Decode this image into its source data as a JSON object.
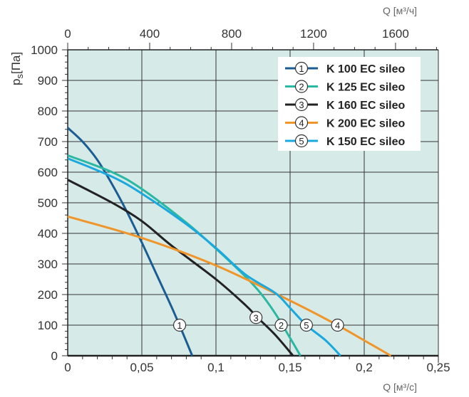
{
  "chart_data": {
    "type": "line",
    "xlabel": "Q [м³/с]",
    "x2label": "Q [м³/ч]",
    "ylabel_main": "p",
    "ylabel_sub": "s",
    "ylabel_unit": "[Па]",
    "xlim": [
      0,
      0.25
    ],
    "x2lim": [
      0,
      1809
    ],
    "ylim": [
      0,
      1000
    ],
    "grid": true,
    "legend_placement": "top-right",
    "xticks": [
      "0",
      "0,05",
      "0,1",
      "0,15",
      "0,2",
      "0,25"
    ],
    "xtick_values": [
      0,
      0.05,
      0.1,
      0.15,
      0.2,
      0.25
    ],
    "x2ticks": [
      "0",
      "400",
      "800",
      "1200",
      "1600"
    ],
    "x2tick_values": [
      0,
      400,
      800,
      1200,
      1600
    ],
    "yticks": [
      "0",
      "100",
      "200",
      "300",
      "400",
      "500",
      "600",
      "700",
      "800",
      "900",
      "1000"
    ],
    "ytick_values": [
      0,
      100,
      200,
      300,
      400,
      500,
      600,
      700,
      800,
      900,
      1000
    ],
    "series": [
      {
        "id": "1",
        "name": "K 100 EC sileo",
        "color": "#1b5d93",
        "label_at": [
          0.0755,
          100
        ],
        "points": [
          [
            0,
            745
          ],
          [
            0.01,
            700
          ],
          [
            0.02,
            640
          ],
          [
            0.03,
            560
          ],
          [
            0.04,
            470
          ],
          [
            0.05,
            370
          ],
          [
            0.06,
            265
          ],
          [
            0.07,
            160
          ],
          [
            0.078,
            70
          ],
          [
            0.084,
            0
          ]
        ]
      },
      {
        "id": "2",
        "name": "K 125 EC sileo",
        "color": "#2bb8a2",
        "label_at": [
          0.144,
          100
        ],
        "points": [
          [
            0,
            655
          ],
          [
            0.03,
            600
          ],
          [
            0.05,
            545
          ],
          [
            0.08,
            435
          ],
          [
            0.1,
            350
          ],
          [
            0.12,
            258
          ],
          [
            0.13,
            205
          ],
          [
            0.14,
            138
          ],
          [
            0.15,
            58
          ],
          [
            0.157,
            0
          ]
        ]
      },
      {
        "id": "3",
        "name": "K 160 EC sileo",
        "color": "#222222",
        "label_at": [
          0.127,
          125
        ],
        "points": [
          [
            0,
            575
          ],
          [
            0.03,
            500
          ],
          [
            0.05,
            440
          ],
          [
            0.07,
            360
          ],
          [
            0.1,
            250
          ],
          [
            0.12,
            165
          ],
          [
            0.128,
            125
          ],
          [
            0.14,
            68
          ],
          [
            0.152,
            0
          ]
        ]
      },
      {
        "id": "4",
        "name": "K 200 EC sileo",
        "color": "#f0952a",
        "label_at": [
          0.182,
          100
        ],
        "points": [
          [
            0,
            455
          ],
          [
            0.05,
            385
          ],
          [
            0.1,
            295
          ],
          [
            0.15,
            180
          ],
          [
            0.18,
            105
          ],
          [
            0.2,
            50
          ],
          [
            0.218,
            0
          ]
        ]
      },
      {
        "id": "5",
        "name": "K 150 EC sileo",
        "color": "#1ba8de",
        "label_at": [
          0.161,
          100
        ],
        "points": [
          [
            0,
            645
          ],
          [
            0.03,
            585
          ],
          [
            0.05,
            530
          ],
          [
            0.08,
            430
          ],
          [
            0.1,
            352
          ],
          [
            0.12,
            265
          ],
          [
            0.14,
            205
          ],
          [
            0.15,
            156
          ],
          [
            0.161,
            100
          ],
          [
            0.174,
            50
          ],
          [
            0.184,
            0
          ]
        ]
      }
    ]
  }
}
